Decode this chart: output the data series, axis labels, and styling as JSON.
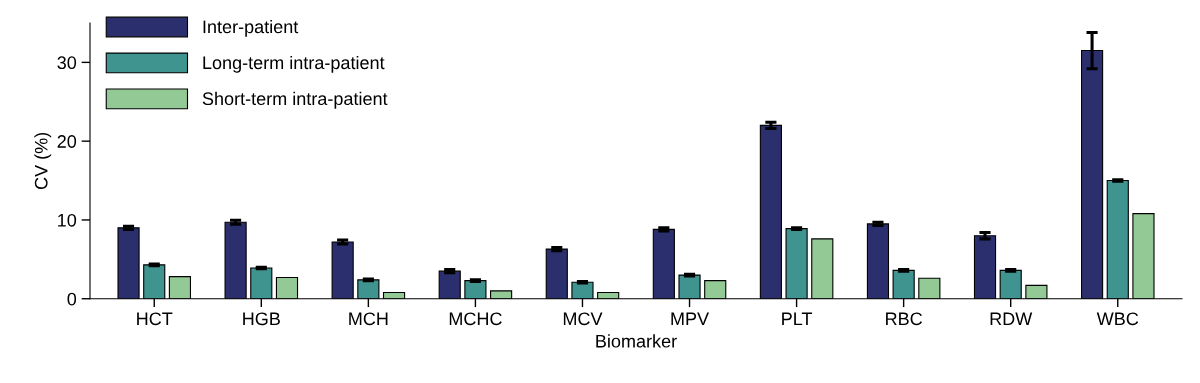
{
  "chart_data": {
    "type": "bar",
    "xlabel": "Biomarker",
    "ylabel": "CV (%)",
    "categories": [
      "HCT",
      "HGB",
      "MCH",
      "MCHC",
      "MCV",
      "MPV",
      "PLT",
      "RBC",
      "RDW",
      "WBC"
    ],
    "series": [
      {
        "name": "Inter-patient",
        "color": "#2b2f6e",
        "values": [
          9.0,
          9.7,
          7.2,
          3.5,
          6.3,
          8.8,
          22.0,
          9.5,
          8.0,
          31.5
        ],
        "errors": [
          0.2,
          0.25,
          0.25,
          0.2,
          0.2,
          0.2,
          0.4,
          0.2,
          0.4,
          2.3
        ]
      },
      {
        "name": "Long-term intra-patient",
        "color": "#3f9490",
        "values": [
          4.3,
          3.9,
          2.4,
          2.3,
          2.1,
          3.0,
          8.9,
          3.6,
          3.6,
          15.0
        ],
        "errors": [
          0.1,
          0.1,
          0.1,
          0.1,
          0.1,
          0.1,
          0.1,
          0.1,
          0.1,
          0.1
        ]
      },
      {
        "name": "Short-term intra-patient",
        "color": "#93c994",
        "values": [
          2.8,
          2.7,
          0.8,
          1.0,
          0.8,
          2.3,
          7.6,
          2.6,
          1.7,
          10.8
        ]
      }
    ],
    "ylim": [
      0,
      35
    ],
    "yticks": [
      0,
      10,
      20,
      30
    ],
    "grid": false,
    "legend": "top left"
  }
}
